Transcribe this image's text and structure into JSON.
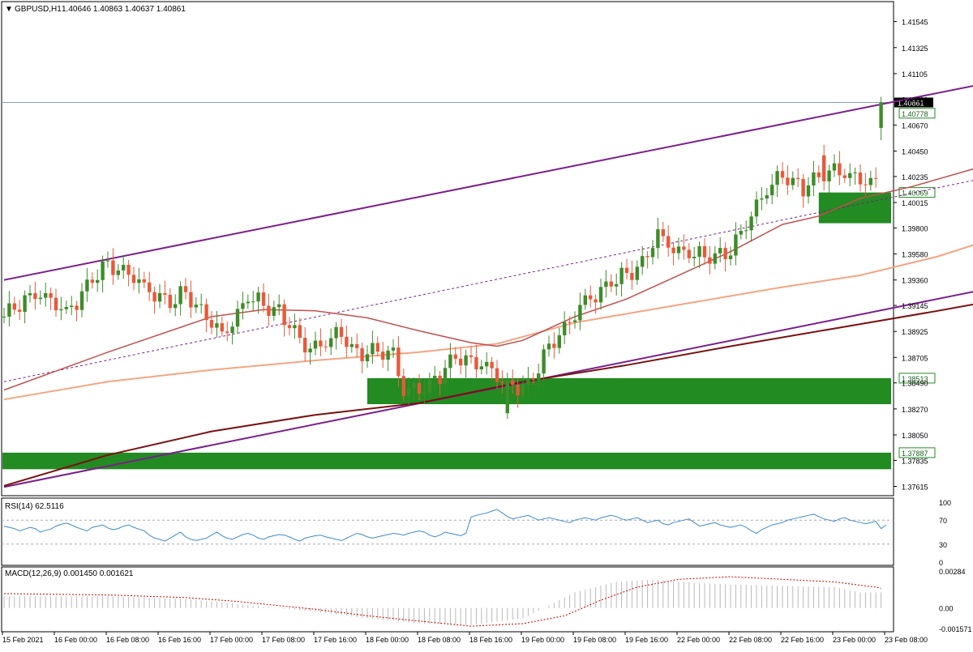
{
  "header": {
    "symbol": "GBPUSD,H1",
    "ohlc": "1.40646 1.40863 1.40637 1.40861"
  },
  "colors": {
    "bull": "#3d8c2a",
    "bear": "#e8593b",
    "channel": "#7a1e8c",
    "ma_fast": "#c0504d",
    "ma_mid": "#f4a582",
    "ma_slow": "#7b1010",
    "zone": "#228b22",
    "zone_dark": "#2f4f4f",
    "rsi": "#3a8ad0",
    "macd_signal": "#cc0000",
    "macd_hist": "#b8b8b8"
  },
  "chart_data": [
    {
      "type": "candlestick",
      "panel": "main",
      "x_labels": [
        "15 Feb 2021",
        "16 Feb 00:00",
        "16 Feb 08:00",
        "16 Feb 16:00",
        "17 Feb 00:00",
        "17 Feb 08:00",
        "17 Feb 16:00",
        "18 Feb 00:00",
        "18 Feb 08:00",
        "18 Feb 16:00",
        "19 Feb 00:00",
        "19 Feb 08:00",
        "19 Feb 16:00",
        "22 Feb 00:00",
        "22 Feb 08:00",
        "22 Feb 16:00",
        "23 Feb 00:00",
        "23 Feb 08:00"
      ],
      "y_ticks": [
        1.37615,
        1.37835,
        1.3805,
        1.3827,
        1.3849,
        1.38705,
        1.38925,
        1.39145,
        1.3936,
        1.3958,
        1.398,
        1.40015,
        1.40235,
        1.4045,
        1.4067,
        1.4089,
        1.41105,
        1.41325,
        1.41545
      ],
      "y_tick_labels": [
        "1.37615",
        "1.37835",
        "1.38050",
        "1.38270",
        "1.38490",
        "1.38705",
        "1.38925",
        "1.39145",
        "1.39360",
        "1.39580",
        "1.39800",
        "1.40015",
        "1.40235",
        "1.40450",
        "1.40670",
        "1.40890",
        "1.41105",
        "1.41325",
        "1.41545"
      ],
      "ylim": [
        1.3755,
        1.417
      ],
      "bars": 170,
      "close_path": [
        [
          0,
          1.3905
        ],
        [
          6,
          1.3925
        ],
        [
          12,
          1.391
        ],
        [
          14,
          1.392
        ],
        [
          20,
          1.395
        ],
        [
          22,
          1.3945
        ],
        [
          26,
          1.3935
        ],
        [
          32,
          1.3915
        ],
        [
          35,
          1.3925
        ],
        [
          42,
          1.389
        ],
        [
          47,
          1.392
        ],
        [
          53,
          1.391
        ],
        [
          58,
          1.388
        ],
        [
          61,
          1.388
        ],
        [
          65,
          1.389
        ],
        [
          68,
          1.3875
        ],
        [
          72,
          1.3875
        ],
        [
          75,
          1.3875
        ],
        [
          77,
          1.384
        ],
        [
          81,
          1.3845
        ],
        [
          87,
          1.387
        ],
        [
          92,
          1.3865
        ],
        [
          96,
          1.385
        ],
        [
          101,
          1.3845
        ],
        [
          104,
          1.387
        ],
        [
          105,
          1.388
        ],
        [
          109,
          1.39
        ],
        [
          112,
          1.392
        ],
        [
          118,
          1.3935
        ],
        [
          123,
          1.395
        ],
        [
          126,
          1.3975
        ],
        [
          130,
          1.396
        ],
        [
          134,
          1.3955
        ],
        [
          140,
          1.396
        ],
        [
          145,
          1.4
        ],
        [
          150,
          1.4025
        ],
        [
          154,
          1.4015
        ],
        [
          160,
          1.403
        ],
        [
          164,
          1.402
        ],
        [
          170,
          1.402
        ],
        [
          176,
          1.406
        ],
        [
          178,
          1.404
        ],
        [
          180,
          1.404
        ],
        [
          183,
          1.4045
        ],
        [
          184,
          1.4075
        ],
        [
          186,
          1.408
        ],
        [
          189,
          1.407
        ],
        [
          192,
          1.4075
        ]
      ],
      "current_price": 1.40861,
      "current_price_label": "1.40861",
      "zones": [
        {
          "label": "1.40069",
          "top": 1.401,
          "bottom": 1.3984,
          "from_bar": 157,
          "filled": true
        },
        {
          "label": "1.38513",
          "top": 1.3853,
          "bottom": 1.3831,
          "from_bar": 70,
          "filled": true
        },
        {
          "label": "1.37887",
          "top": 1.379,
          "bottom": 1.3776,
          "from_bar": 0,
          "filled": true
        },
        {
          "label": "1.40778",
          "top": 1.4086,
          "bottom": 1.4077,
          "from_bar": 171,
          "filled": false
        }
      ],
      "channel_upper": [
        [
          0,
          1.3936
        ],
        [
          198,
          1.411
        ]
      ],
      "channel_lower": [
        [
          0,
          1.3761
        ],
        [
          198,
          1.3936
        ]
      ],
      "channel_mid_dashed": [
        [
          0,
          1.385
        ],
        [
          192,
          1.4025
        ]
      ],
      "ma_fast": [
        [
          0,
          1.3843
        ],
        [
          20,
          1.3875
        ],
        [
          40,
          1.3905
        ],
        [
          50,
          1.3911
        ],
        [
          60,
          1.391
        ],
        [
          70,
          1.3904
        ],
        [
          80,
          1.3893
        ],
        [
          90,
          1.3883
        ],
        [
          95,
          1.388
        ],
        [
          100,
          1.3885
        ],
        [
          110,
          1.3905
        ],
        [
          120,
          1.392
        ],
        [
          130,
          1.394
        ],
        [
          140,
          1.396
        ],
        [
          150,
          1.3983
        ],
        [
          157,
          1.399
        ],
        [
          165,
          1.4005
        ],
        [
          175,
          1.4015
        ],
        [
          190,
          1.4034
        ]
      ],
      "ma_mid": [
        [
          0,
          1.3835
        ],
        [
          20,
          1.385
        ],
        [
          40,
          1.386
        ],
        [
          60,
          1.3868
        ],
        [
          80,
          1.3875
        ],
        [
          95,
          1.3882
        ],
        [
          110,
          1.39
        ],
        [
          130,
          1.3915
        ],
        [
          150,
          1.393
        ],
        [
          165,
          1.394
        ],
        [
          180,
          1.3956
        ],
        [
          190,
          1.397
        ]
      ],
      "ma_slow": [
        [
          0,
          1.3762
        ],
        [
          20,
          1.3788
        ],
        [
          40,
          1.3808
        ],
        [
          60,
          1.3822
        ],
        [
          80,
          1.3832
        ],
        [
          100,
          1.385
        ],
        [
          120,
          1.3864
        ],
        [
          140,
          1.388
        ],
        [
          160,
          1.3895
        ],
        [
          180,
          1.391
        ],
        [
          190,
          1.3918
        ]
      ]
    },
    {
      "type": "line",
      "panel": "rsi",
      "title": "RSI(14) 62.5116",
      "y_ticks": [
        100,
        70,
        30,
        0
      ],
      "y_tick_labels": [
        "100",
        "70",
        "30",
        "0"
      ],
      "levels": [
        70,
        30
      ],
      "ylim": [
        0,
        100
      ],
      "values": [
        60,
        58,
        56,
        52,
        55,
        58,
        56,
        50,
        53,
        55,
        60,
        63,
        65,
        62,
        58,
        55,
        52,
        58,
        60,
        62,
        57,
        54,
        56,
        60,
        62,
        58,
        55,
        52,
        45,
        40,
        38,
        35,
        40,
        45,
        50,
        42,
        38,
        36,
        38,
        40,
        45,
        50,
        44,
        40,
        38,
        42,
        46,
        48,
        45,
        40,
        38,
        42,
        44,
        46,
        45,
        42,
        38,
        35,
        40,
        42,
        44,
        45,
        42,
        40,
        38,
        36,
        40,
        44,
        48,
        46,
        42,
        40,
        42,
        44,
        46,
        48,
        47,
        45,
        48,
        50,
        52,
        50,
        45,
        42,
        45,
        50,
        48,
        46,
        44,
        48,
        75,
        78,
        80,
        82,
        85,
        88,
        82,
        76,
        72,
        74,
        76,
        78,
        74,
        70,
        72,
        74,
        72,
        70,
        68,
        66,
        70,
        72,
        74,
        72,
        70,
        74,
        76,
        78,
        76,
        72,
        70,
        72,
        74,
        70,
        66,
        68,
        70,
        64,
        62,
        66,
        68,
        70,
        72,
        66,
        60,
        62,
        64,
        66,
        62,
        60,
        58,
        60,
        62,
        58,
        52,
        48,
        54,
        58,
        62,
        64,
        66,
        70,
        72,
        74,
        76,
        78,
        80,
        76,
        72,
        70,
        68,
        72,
        74,
        70,
        68,
        66,
        64,
        66,
        68,
        56,
        62
      ]
    },
    {
      "type": "bar",
      "panel": "macd",
      "title": "MACD(12,26,9) 0.001450 0.001621",
      "y_ticks": [
        0.00284,
        0.0,
        -0.001571
      ],
      "y_tick_labels": [
        "0.00284",
        "0.00",
        "-0.001571"
      ],
      "ylim": [
        -0.0017,
        0.0029
      ],
      "histogram_knots": [
        [
          0,
          0.0009
        ],
        [
          20,
          0.0009
        ],
        [
          35,
          0.0007
        ],
        [
          45,
          0.0003
        ],
        [
          60,
          -0.0003
        ],
        [
          70,
          -0.0008
        ],
        [
          80,
          -0.0012
        ],
        [
          90,
          -0.0013
        ],
        [
          100,
          -0.0008
        ],
        [
          104,
          0.0
        ],
        [
          110,
          0.0012
        ],
        [
          118,
          0.002
        ],
        [
          125,
          0.0022
        ],
        [
          130,
          0.002
        ],
        [
          140,
          0.0018
        ],
        [
          150,
          0.0017
        ],
        [
          160,
          0.0016
        ],
        [
          165,
          0.0012
        ],
        [
          172,
          0.0012
        ],
        [
          180,
          0.0016
        ],
        [
          190,
          0.0015
        ]
      ],
      "signal_knots": [
        [
          0,
          0.0011
        ],
        [
          20,
          0.001
        ],
        [
          35,
          0.0008
        ],
        [
          45,
          0.0005
        ],
        [
          60,
          -0.0001
        ],
        [
          70,
          -0.0006
        ],
        [
          80,
          -0.001
        ],
        [
          90,
          -0.0014
        ],
        [
          100,
          -0.0012
        ],
        [
          108,
          -0.0006
        ],
        [
          115,
          0.0006
        ],
        [
          122,
          0.0016
        ],
        [
          130,
          0.0022
        ],
        [
          140,
          0.0024
        ],
        [
          150,
          0.0022
        ],
        [
          160,
          0.002
        ],
        [
          168,
          0.0016
        ],
        [
          175,
          0.001
        ],
        [
          182,
          0.0013
        ],
        [
          190,
          0.0016
        ]
      ]
    }
  ]
}
